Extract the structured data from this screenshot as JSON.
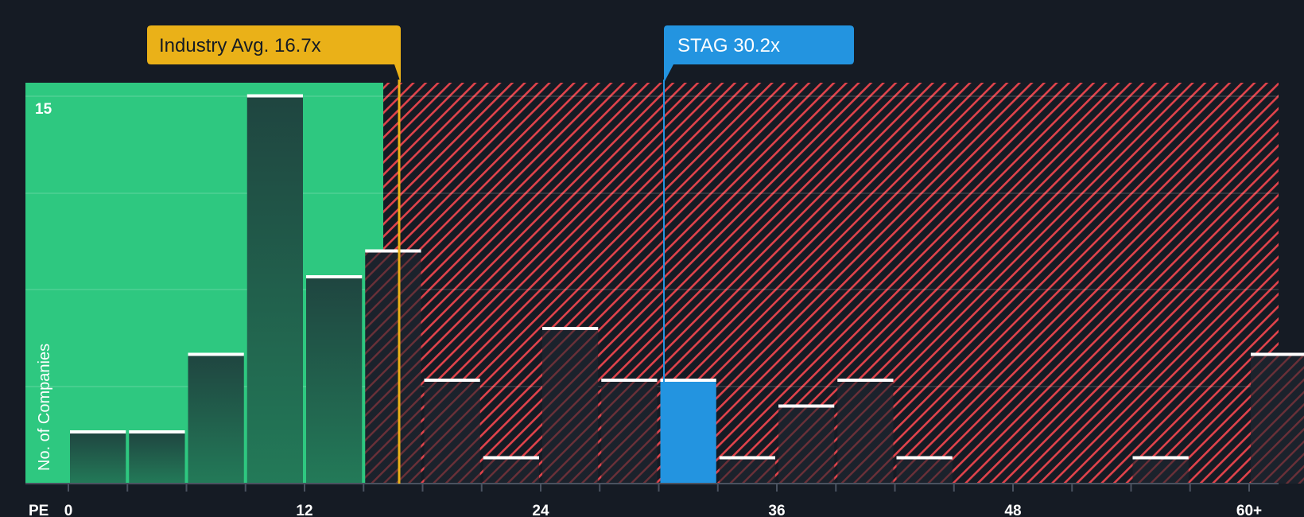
{
  "chart_data": {
    "type": "bar",
    "title": "",
    "xlabel": "PE",
    "ylabel": "No. of Companies",
    "x_ticks": [
      "0",
      "12",
      "24",
      "36",
      "48",
      "60+"
    ],
    "y_ticks": [
      "15"
    ],
    "ylim": [
      0,
      15
    ],
    "bin_width": 3,
    "categories": [
      "0-3",
      "3-6",
      "6-9",
      "9-12",
      "12-15",
      "15-18",
      "18-21",
      "21-24",
      "24-27",
      "27-30",
      "30-33",
      "33-36",
      "36-39",
      "39-42",
      "42-45",
      "45-48",
      "48-51",
      "51-54",
      "54-57",
      "57-60",
      "60+"
    ],
    "values": [
      2,
      2,
      5,
      15,
      8,
      9,
      4,
      1,
      6,
      4,
      4,
      1,
      3,
      4,
      1,
      0,
      0,
      0,
      1,
      0,
      5
    ],
    "highlight_index": 10,
    "annotations": [
      {
        "label": "Industry Avg. 16.7x",
        "value": 16.7,
        "color": "#eab118"
      },
      {
        "label": "STAG 30.2x",
        "value": 30.2,
        "color": "#2394e0"
      }
    ],
    "regions": [
      {
        "name": "undervalued",
        "from": 0,
        "to": 16.7,
        "color": "#2ec880"
      },
      {
        "name": "overvalued",
        "from": 16.7,
        "to": 63,
        "color": "#e0434b",
        "pattern": "hatched"
      }
    ],
    "grid": true
  },
  "labels": {
    "industry_avg": "Industry Avg. 16.7x",
    "company": "STAG 30.2x",
    "y_axis": "No. of Companies",
    "y_top_tick": "15",
    "x_axis": "PE"
  },
  "colors": {
    "background": "#151b24",
    "green": "#2ec880",
    "red_hatch": "#e0434b",
    "industry": "#eab118",
    "company": "#2394e0",
    "bar_dark": "#1f4740"
  }
}
